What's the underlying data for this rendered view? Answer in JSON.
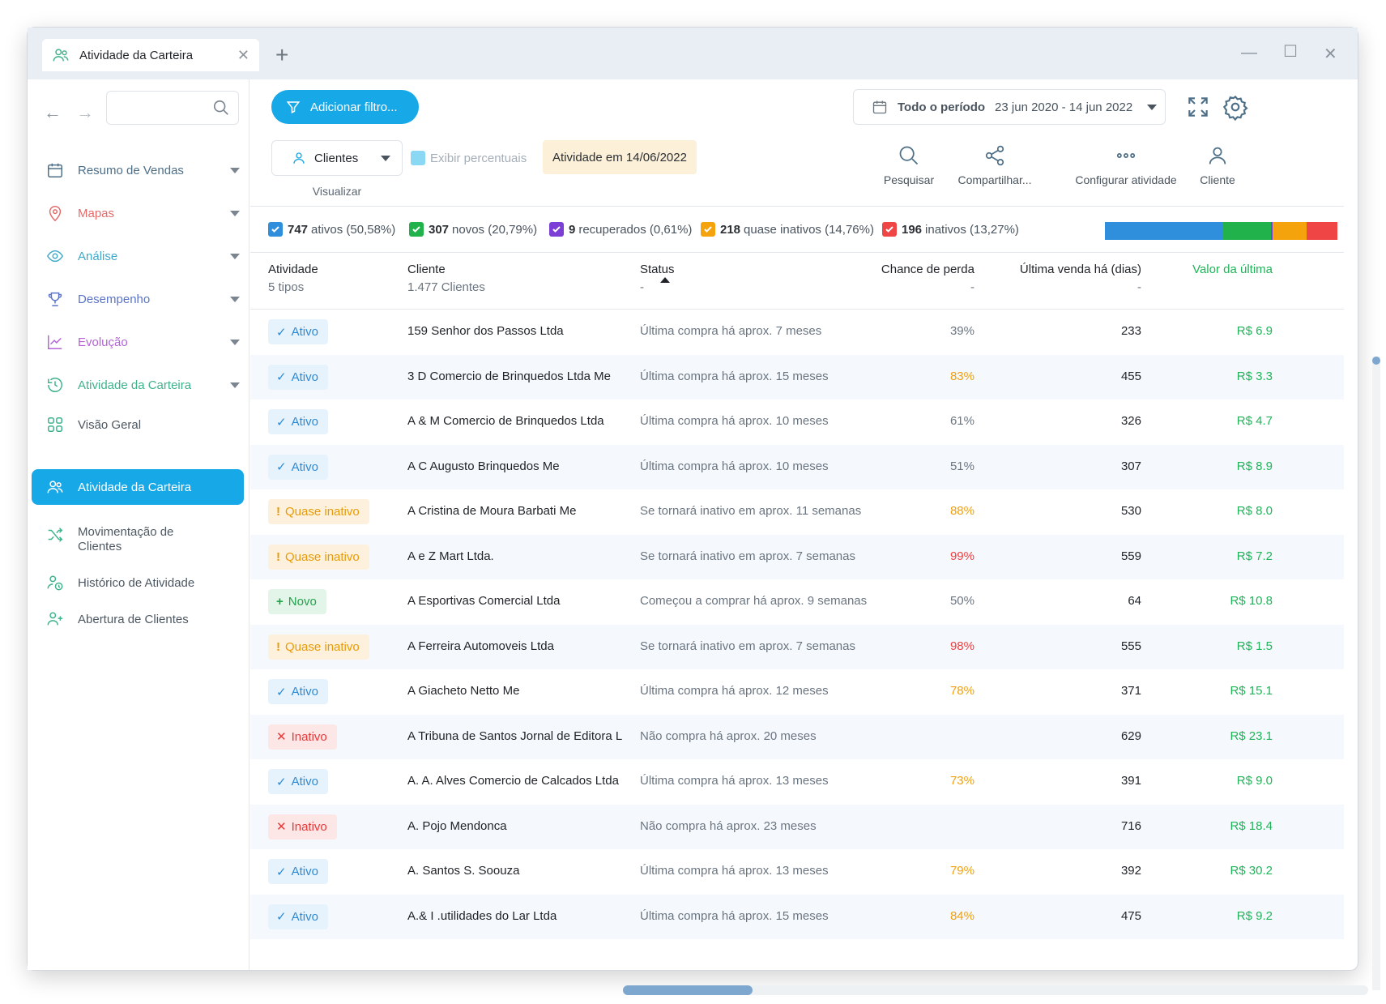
{
  "window": {
    "tab_title": "Atividade da Carteira",
    "new_tab_icon": "plus-icon",
    "controls": [
      "minimize-icon",
      "maximize-icon",
      "close-icon"
    ]
  },
  "sidebar": {
    "search_placeholder": "",
    "items": [
      {
        "label": "Resumo de Vendas",
        "icon": "calendar-icon",
        "color": "#4d6f88"
      },
      {
        "label": "Mapas",
        "icon": "map-pin-icon",
        "color": "#e56a6a"
      },
      {
        "label": "Análise",
        "icon": "eye-icon",
        "color": "#3fa9c9"
      },
      {
        "label": "Desempenho",
        "icon": "trophy-icon",
        "color": "#5b74c8"
      },
      {
        "label": "Evolução",
        "icon": "trend-up-icon",
        "color": "#b465d3"
      },
      {
        "label": "Atividade da Carteira",
        "icon": "history-icon",
        "color": "#3fb38b"
      }
    ],
    "subitems": [
      {
        "label": "Visão Geral",
        "icon": "grid-icon"
      },
      {
        "label": "Atividade da Carteira",
        "icon": "users-icon",
        "active": true
      },
      {
        "label": "Movimentação de Clientes",
        "icon": "shuffle-icon"
      },
      {
        "label": "Histórico de Atividade",
        "icon": "user-history-icon"
      },
      {
        "label": "Abertura de Clientes",
        "icon": "user-plus-icon"
      }
    ]
  },
  "toolbar": {
    "filter_label": "Adicionar filtro...",
    "period_label": "Todo o período",
    "period_value": "23 jun 2020 - 14 jun 2022",
    "view_select": "Clientes",
    "view_label": "Visualizar",
    "percent_toggle": "Exibir percentuais",
    "activity_date_prefix": "Atividade em ",
    "activity_date": "14/06/2022",
    "tools": [
      "Pesquisar",
      "Compartilhar...",
      "Configurar atividade",
      "Cliente"
    ]
  },
  "summary": [
    {
      "count": "747",
      "label": "ativos (50,58%)",
      "color": "#2f8fdc",
      "pct": 50.58
    },
    {
      "count": "307",
      "label": "novos (20,79%)",
      "color": "#22b24c",
      "pct": 20.79
    },
    {
      "count": "9",
      "label": "recuperados (0,61%)",
      "color": "#7b3fd6",
      "pct": 0.61
    },
    {
      "count": "218",
      "label": "quase inativos (14,76%)",
      "color": "#f5a30c",
      "pct": 14.76
    },
    {
      "count": "196",
      "label": "inativos (13,27%)",
      "color": "#ef4545",
      "pct": 13.27
    }
  ],
  "table": {
    "columns": [
      {
        "title": "Atividade",
        "sub": "5 tipos"
      },
      {
        "title": "Cliente",
        "sub": "1.477 Clientes"
      },
      {
        "title": "Status",
        "sub": "-"
      },
      {
        "title": "Chance de perda",
        "sub": "-"
      },
      {
        "title": "Última venda há (dias)",
        "sub": "-"
      },
      {
        "title": "Valor da última",
        "sub": ""
      }
    ],
    "rows": [
      {
        "type": "ativo",
        "badge": "Ativo",
        "client": "159 Senhor dos Passos Ltda",
        "status": "Última compra há aprox. 7 meses",
        "chance": "39%",
        "chance_level": "gray",
        "dias": "233",
        "valor": "R$ 6.9"
      },
      {
        "type": "ativo",
        "badge": "Ativo",
        "client": "3 D Comercio de Brinquedos Ltda Me",
        "status": "Última compra há aprox. 15 meses",
        "chance": "83%",
        "chance_level": "orange",
        "dias": "455",
        "valor": "R$ 3.3"
      },
      {
        "type": "ativo",
        "badge": "Ativo",
        "client": "A & M Comercio de Brinquedos Ltda",
        "status": "Última compra há aprox. 10 meses",
        "chance": "61%",
        "chance_level": "gray",
        "dias": "326",
        "valor": "R$ 4.7"
      },
      {
        "type": "ativo",
        "badge": "Ativo",
        "client": "A C Augusto Brinquedos Me",
        "status": "Última compra há aprox. 10 meses",
        "chance": "51%",
        "chance_level": "gray",
        "dias": "307",
        "valor": "R$ 8.9"
      },
      {
        "type": "quase",
        "badge": "Quase inativo",
        "client": "A Cristina de Moura Barbati Me",
        "status": "Se tornará inativo em aprox. 11 semanas",
        "chance": "88%",
        "chance_level": "orange",
        "dias": "530",
        "valor": "R$ 8.0"
      },
      {
        "type": "quase",
        "badge": "Quase inativo",
        "client": "A e Z  Mart Ltda.",
        "status": "Se tornará inativo em aprox. 7 semanas",
        "chance": "99%",
        "chance_level": "red",
        "dias": "559",
        "valor": "R$ 7.2"
      },
      {
        "type": "novo",
        "badge": "Novo",
        "client": "A Esportivas Comercial Ltda",
        "status": "Começou a comprar há aprox. 9 semanas",
        "chance": "50%",
        "chance_level": "gray",
        "dias": "64",
        "valor": "R$ 10.8"
      },
      {
        "type": "quase",
        "badge": "Quase inativo",
        "client": "A Ferreira Automoveis Ltda",
        "status": "Se tornará inativo em aprox. 7 semanas",
        "chance": "98%",
        "chance_level": "red",
        "dias": "555",
        "valor": "R$ 1.5"
      },
      {
        "type": "ativo",
        "badge": "Ativo",
        "client": "A Giacheto Netto Me",
        "status": "Última compra há aprox. 12 meses",
        "chance": "78%",
        "chance_level": "orange",
        "dias": "371",
        "valor": "R$ 15.1"
      },
      {
        "type": "inativo",
        "badge": "Inativo",
        "client": "A Tribuna de Santos Jornal de Editora L",
        "status": "Não compra há aprox. 20 meses",
        "chance": "",
        "chance_level": "gray",
        "dias": "629",
        "valor": "R$ 23.1"
      },
      {
        "type": "ativo",
        "badge": "Ativo",
        "client": "A. A. Alves Comercio de Calcados Ltda",
        "status": "Última compra há aprox. 13 meses",
        "chance": "73%",
        "chance_level": "orange",
        "dias": "391",
        "valor": "R$ 9.0"
      },
      {
        "type": "inativo",
        "badge": "Inativo",
        "client": "A. Pojo Mendonca",
        "status": "Não compra há aprox. 23 meses",
        "chance": "",
        "chance_level": "gray",
        "dias": "716",
        "valor": "R$ 18.4"
      },
      {
        "type": "ativo",
        "badge": "Ativo",
        "client": "A. Santos S. Soouza",
        "status": "Última compra há aprox. 13 meses",
        "chance": "79%",
        "chance_level": "orange",
        "dias": "392",
        "valor": "R$ 30.2"
      },
      {
        "type": "ativo",
        "badge": "Ativo",
        "client": "A.& I .utilidades do Lar Ltda",
        "status": "Última compra há aprox. 15 meses",
        "chance": "84%",
        "chance_level": "orange",
        "dias": "475",
        "valor": "R$ 9.2"
      }
    ]
  }
}
